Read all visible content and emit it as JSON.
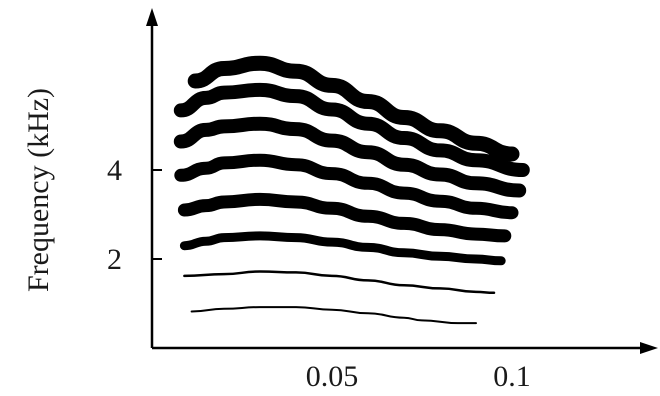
{
  "chart_data": {
    "type": "line",
    "title": "",
    "xlabel": "",
    "ylabel": "Frequency (kHz)",
    "xticks": [
      {
        "value": 0.05,
        "label": "0.05"
      },
      {
        "value": 0.1,
        "label": "0.1"
      }
    ],
    "yticks": [
      {
        "value": 2,
        "label": "2"
      },
      {
        "value": 4,
        "label": "4"
      }
    ],
    "xlim": [
      0.0,
      0.137
    ],
    "ylim": [
      0.0,
      6.84
    ],
    "grid": false,
    "legend": "none",
    "color": "#000000",
    "series": [
      {
        "harmonic": 1,
        "weight": 2,
        "x": [
          0.011,
          0.02,
          0.03,
          0.04,
          0.05,
          0.06,
          0.07,
          0.075,
          0.085,
          0.09
        ],
        "y": [
          0.82,
          0.88,
          0.92,
          0.92,
          0.86,
          0.78,
          0.68,
          0.62,
          0.56,
          0.56
        ]
      },
      {
        "harmonic": 2,
        "weight": 2.5,
        "x": [
          0.009,
          0.02,
          0.03,
          0.04,
          0.05,
          0.06,
          0.07,
          0.08,
          0.09,
          0.095
        ],
        "y": [
          1.62,
          1.66,
          1.72,
          1.7,
          1.62,
          1.52,
          1.41,
          1.34,
          1.26,
          1.24
        ]
      },
      {
        "harmonic": 3,
        "weight": 9,
        "x": [
          0.009,
          0.015,
          0.02,
          0.03,
          0.04,
          0.05,
          0.06,
          0.07,
          0.08,
          0.09,
          0.097
        ],
        "y": [
          2.3,
          2.4,
          2.48,
          2.52,
          2.48,
          2.38,
          2.26,
          2.14,
          2.06,
          2.0,
          1.96
        ]
      },
      {
        "harmonic": 4,
        "weight": 13,
        "x": [
          0.009,
          0.015,
          0.02,
          0.03,
          0.04,
          0.05,
          0.06,
          0.07,
          0.08,
          0.09,
          0.098
        ],
        "y": [
          3.1,
          3.2,
          3.28,
          3.34,
          3.28,
          3.14,
          2.96,
          2.8,
          2.66,
          2.56,
          2.52
        ]
      },
      {
        "harmonic": 5,
        "weight": 13,
        "x": [
          0.008,
          0.015,
          0.02,
          0.03,
          0.04,
          0.05,
          0.06,
          0.07,
          0.08,
          0.09,
          0.1
        ],
        "y": [
          3.88,
          4.04,
          4.16,
          4.22,
          4.12,
          3.92,
          3.7,
          3.48,
          3.3,
          3.14,
          3.04
        ]
      },
      {
        "harmonic": 6,
        "weight": 14,
        "x": [
          0.008,
          0.015,
          0.02,
          0.03,
          0.04,
          0.05,
          0.06,
          0.07,
          0.08,
          0.09,
          0.102
        ],
        "y": [
          4.64,
          4.9,
          4.98,
          5.04,
          4.92,
          4.66,
          4.4,
          4.12,
          3.9,
          3.7,
          3.54
        ]
      },
      {
        "harmonic": 7,
        "weight": 14,
        "x": [
          0.008,
          0.015,
          0.02,
          0.03,
          0.04,
          0.05,
          0.06,
          0.07,
          0.08,
          0.09,
          0.103
        ],
        "y": [
          5.34,
          5.62,
          5.74,
          5.8,
          5.66,
          5.36,
          5.04,
          4.72,
          4.44,
          4.22,
          4.0
        ]
      },
      {
        "harmonic": 8,
        "weight": 15,
        "x": [
          0.012,
          0.02,
          0.03,
          0.04,
          0.05,
          0.06,
          0.07,
          0.08,
          0.09,
          0.1
        ],
        "y": [
          6.0,
          6.28,
          6.4,
          6.22,
          5.9,
          5.54,
          5.18,
          4.88,
          4.6,
          4.36
        ]
      }
    ]
  }
}
